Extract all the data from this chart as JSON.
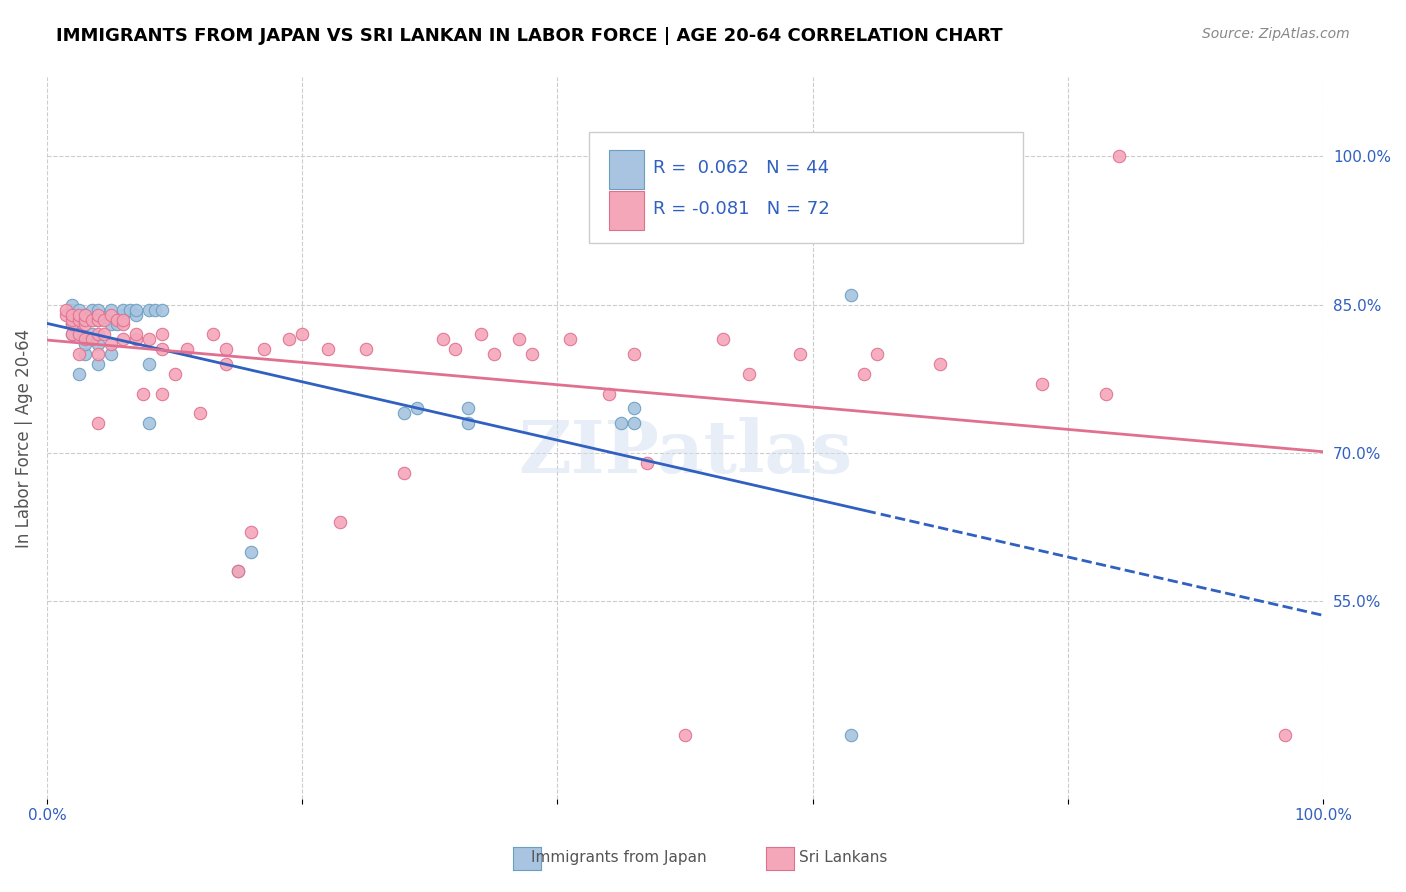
{
  "title": "IMMIGRANTS FROM JAPAN VS SRI LANKAN IN LABOR FORCE | AGE 20-64 CORRELATION CHART",
  "source": "Source: ZipAtlas.com",
  "xlabel": "",
  "ylabel": "In Labor Force | Age 20-64",
  "xlim": [
    0.0,
    1.0
  ],
  "ylim": [
    0.35,
    1.08
  ],
  "x_ticks": [
    0.0,
    0.2,
    0.4,
    0.6,
    0.8,
    1.0
  ],
  "x_tick_labels": [
    "0.0%",
    "",
    "",
    "",
    "",
    "100.0%"
  ],
  "y_tick_labels_right": [
    "100.0%",
    "85.0%",
    "70.0%",
    "55.0%"
  ],
  "y_tick_vals_right": [
    1.0,
    0.85,
    0.7,
    0.55
  ],
  "legend_line1": "R =  0.062   N = 44",
  "legend_line2": "R = -0.081   N = 72",
  "japan_color": "#a8c4e0",
  "srilanka_color": "#f4a7b9",
  "japan_edge": "#6a9fc0",
  "srilanka_edge": "#e07090",
  "trendline_japan_color": "#3060c0",
  "trendline_srilanka_color": "#e07090",
  "watermark": "ZIPatlas",
  "japan_x": [
    0.02,
    0.02,
    0.02,
    0.02,
    0.02,
    0.025,
    0.025,
    0.025,
    0.025,
    0.03,
    0.03,
    0.03,
    0.03,
    0.035,
    0.035,
    0.04,
    0.04,
    0.04,
    0.04,
    0.05,
    0.05,
    0.05,
    0.055,
    0.06,
    0.06,
    0.065,
    0.07,
    0.07,
    0.08,
    0.08,
    0.08,
    0.085,
    0.09,
    0.15,
    0.16,
    0.28,
    0.29,
    0.33,
    0.33,
    0.45,
    0.46,
    0.46,
    0.63,
    0.63
  ],
  "japan_y": [
    0.82,
    0.83,
    0.84,
    0.845,
    0.85,
    0.78,
    0.82,
    0.84,
    0.845,
    0.8,
    0.81,
    0.835,
    0.84,
    0.82,
    0.845,
    0.79,
    0.81,
    0.835,
    0.845,
    0.8,
    0.83,
    0.845,
    0.83,
    0.84,
    0.845,
    0.845,
    0.84,
    0.845,
    0.73,
    0.79,
    0.845,
    0.845,
    0.845,
    0.58,
    0.6,
    0.74,
    0.745,
    0.73,
    0.745,
    0.73,
    0.73,
    0.745,
    0.86,
    0.415
  ],
  "srilanka_x": [
    0.015,
    0.015,
    0.02,
    0.02,
    0.02,
    0.02,
    0.025,
    0.025,
    0.025,
    0.025,
    0.03,
    0.03,
    0.03,
    0.03,
    0.035,
    0.035,
    0.04,
    0.04,
    0.04,
    0.04,
    0.04,
    0.045,
    0.045,
    0.05,
    0.05,
    0.055,
    0.06,
    0.06,
    0.06,
    0.07,
    0.07,
    0.075,
    0.08,
    0.09,
    0.09,
    0.09,
    0.1,
    0.11,
    0.12,
    0.13,
    0.14,
    0.14,
    0.15,
    0.16,
    0.17,
    0.19,
    0.2,
    0.22,
    0.23,
    0.25,
    0.28,
    0.31,
    0.32,
    0.34,
    0.35,
    0.37,
    0.38,
    0.41,
    0.44,
    0.46,
    0.47,
    0.5,
    0.53,
    0.55,
    0.59,
    0.64,
    0.65,
    0.7,
    0.78,
    0.83,
    0.84,
    0.97
  ],
  "srilanka_y": [
    0.84,
    0.845,
    0.82,
    0.83,
    0.835,
    0.84,
    0.8,
    0.82,
    0.835,
    0.84,
    0.815,
    0.83,
    0.835,
    0.84,
    0.815,
    0.835,
    0.73,
    0.8,
    0.82,
    0.835,
    0.84,
    0.82,
    0.835,
    0.81,
    0.84,
    0.835,
    0.815,
    0.83,
    0.835,
    0.815,
    0.82,
    0.76,
    0.815,
    0.76,
    0.805,
    0.82,
    0.78,
    0.805,
    0.74,
    0.82,
    0.79,
    0.805,
    0.58,
    0.62,
    0.805,
    0.815,
    0.82,
    0.805,
    0.63,
    0.805,
    0.68,
    0.815,
    0.805,
    0.82,
    0.8,
    0.815,
    0.8,
    0.815,
    0.76,
    0.8,
    0.69,
    0.415,
    0.815,
    0.78,
    0.8,
    0.78,
    0.8,
    0.79,
    0.77,
    0.76,
    1.0,
    0.415
  ]
}
